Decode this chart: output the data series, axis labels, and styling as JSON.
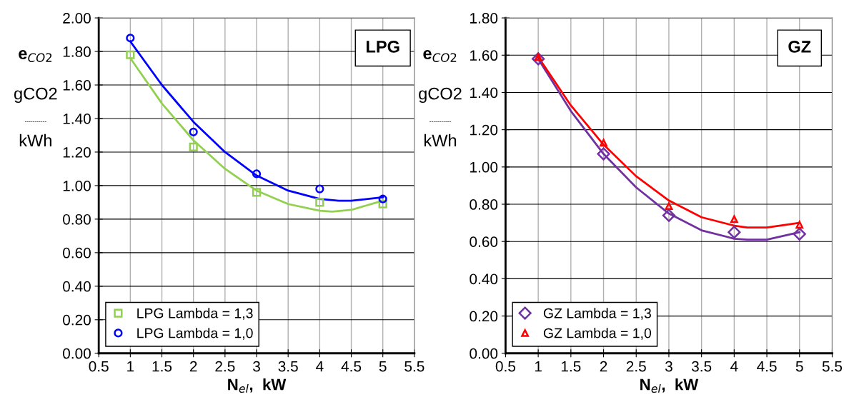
{
  "chart_data": [
    {
      "type": "scatter",
      "title": "LPG",
      "xlabel": "N$_{el}$,  kW",
      "ylabel": "e$_{CO2}$",
      "annotations": [
        "gCO2",
        "-----------",
        "kWh"
      ],
      "x": [
        1,
        2,
        3,
        4,
        5
      ],
      "xlim": [
        0.5,
        5.5
      ],
      "xticks": [
        0.5,
        1,
        1.5,
        2,
        2.5,
        3,
        3.5,
        4,
        4.5,
        5,
        5.5
      ],
      "ylim": [
        0,
        2
      ],
      "yticks": [
        {
          "value": 0,
          "label": "0.00"
        },
        {
          "value": 0.2,
          "label": "0.20"
        },
        {
          "value": 0.4,
          "label": "0.40"
        },
        {
          "value": 0.6,
          "label": "0.60"
        },
        {
          "value": 0.8,
          "label": "0.80"
        },
        {
          "value": 1,
          "label": "1.00"
        },
        {
          "value": 1.2,
          "label": "1.20"
        },
        {
          "value": 1.4,
          "label": "1.40"
        },
        {
          "value": 1.6,
          "label": "1.60"
        },
        {
          "value": 1.8,
          "label": "1.80"
        },
        {
          "value": 2,
          "label": "2.00"
        }
      ],
      "grid": true,
      "legend": "bottom left",
      "series": [
        {
          "name": "LPG Lambda = 1,3",
          "color": "#92d050",
          "marker": "square",
          "values": [
            1.78,
            1.23,
            0.96,
            0.9,
            0.89
          ]
        },
        {
          "name": "LPG Lambda = 1,0",
          "color": "#0000ff",
          "marker": "circle",
          "values": [
            1.88,
            1.32,
            1.07,
            0.98,
            0.92
          ]
        },
        {
          "type": "line",
          "color": "#92d050",
          "marker": "none",
          "x": [
            1,
            1.5,
            2,
            2.5,
            3,
            3.5,
            4,
            4.2,
            4.5,
            5
          ],
          "values": [
            1.76,
            1.49,
            1.27,
            1.1,
            0.97,
            0.89,
            0.85,
            0.845,
            0.855,
            0.91
          ]
        },
        {
          "type": "line",
          "color": "#0000ff",
          "marker": "none",
          "x": [
            1,
            1.5,
            2,
            2.5,
            3,
            3.5,
            4,
            4.3,
            4.5,
            5
          ],
          "values": [
            1.86,
            1.6,
            1.38,
            1.2,
            1.06,
            0.97,
            0.92,
            0.91,
            0.91,
            0.93
          ]
        }
      ]
    },
    {
      "type": "scatter",
      "title": "GZ",
      "xlabel": "N$_{el}$,  kW",
      "ylabel": "e$_{CO2}$",
      "annotations": [
        "gCO2",
        "-----------",
        "kWh"
      ],
      "x": [
        1,
        2,
        3,
        4,
        5
      ],
      "xlim": [
        0.5,
        5.5
      ],
      "xticks": [
        0.5,
        1,
        1.5,
        2,
        2.5,
        3,
        3.5,
        4,
        4.5,
        5,
        5.5
      ],
      "ylim": [
        0,
        1.8
      ],
      "yticks": [
        {
          "value": 0,
          "label": "0.00"
        },
        {
          "value": 0.2,
          "label": "0.20"
        },
        {
          "value": 0.4,
          "label": "0.40"
        },
        {
          "value": 0.6,
          "label": "0.60"
        },
        {
          "value": 0.8,
          "label": "0.80"
        },
        {
          "value": 1,
          "label": "1.00"
        },
        {
          "value": 1.2,
          "label": "1.20"
        },
        {
          "value": 1.4,
          "label": "1.40"
        },
        {
          "value": 1.6,
          "label": "1.60"
        },
        {
          "value": 1.8,
          "label": "1.80"
        }
      ],
      "grid": true,
      "legend": "bottom left",
      "series": [
        {
          "name": "GZ Lambda = 1,3",
          "color": "#7030a0",
          "marker": "diamond",
          "values": [
            1.58,
            1.07,
            0.74,
            0.65,
            0.64
          ]
        },
        {
          "name": "GZ Lambda = 1,0",
          "color": "#ff0000",
          "marker": "triangle",
          "values": [
            1.59,
            1.13,
            0.79,
            0.72,
            0.69
          ]
        },
        {
          "type": "line",
          "color": "#7030a0",
          "marker": "none",
          "x": [
            1,
            1.5,
            2,
            2.5,
            3,
            3.5,
            4,
            4.2,
            4.5,
            5
          ],
          "values": [
            1.58,
            1.3,
            1.07,
            0.89,
            0.75,
            0.66,
            0.615,
            0.61,
            0.61,
            0.65
          ]
        },
        {
          "type": "line",
          "color": "#ff0000",
          "marker": "none",
          "x": [
            1,
            1.5,
            2,
            2.5,
            3,
            3.5,
            4,
            4.2,
            4.5,
            5
          ],
          "values": [
            1.59,
            1.33,
            1.12,
            0.95,
            0.82,
            0.73,
            0.685,
            0.675,
            0.675,
            0.7
          ]
        }
      ]
    }
  ]
}
